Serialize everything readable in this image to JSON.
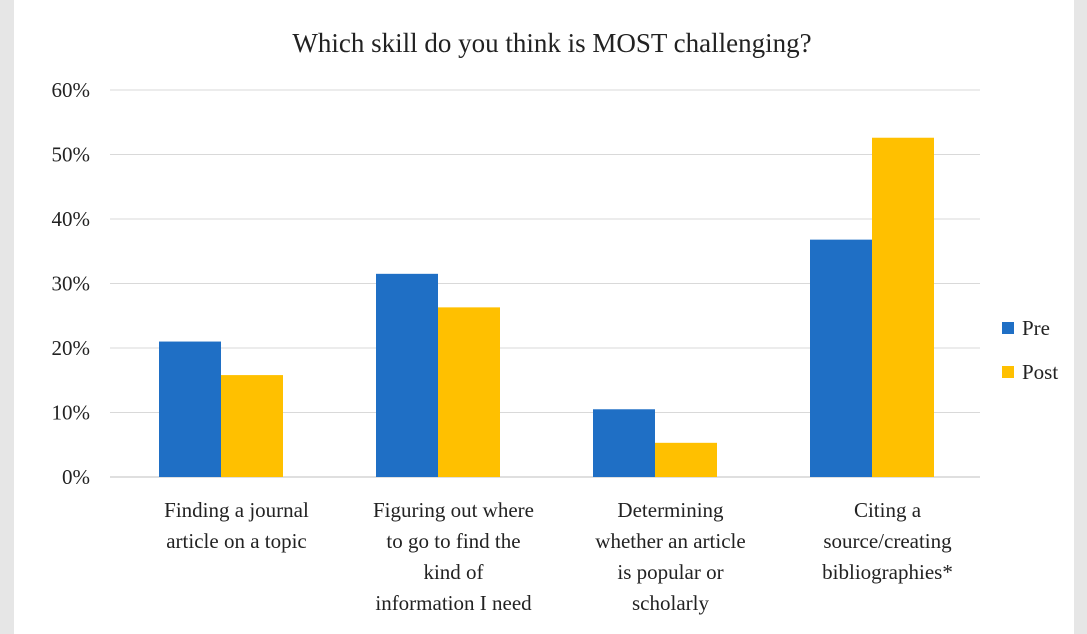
{
  "chart_data": {
    "type": "bar",
    "title": "Which skill do you think is MOST challenging?",
    "xlabel": "",
    "ylabel": "",
    "ylim": [
      0,
      60
    ],
    "yticks": [
      "0%",
      "10%",
      "20%",
      "30%",
      "40%",
      "50%",
      "60%"
    ],
    "y_unit": "%",
    "grid": true,
    "legend_position": "right",
    "categories": [
      [
        "Finding a journal",
        "article on a topic"
      ],
      [
        "Figuring out where",
        "to go to find the",
        "kind of",
        "information I need"
      ],
      [
        "Determining",
        "whether an article",
        "is popular or",
        "scholarly"
      ],
      [
        "Citing a",
        "source/creating",
        "bibliographies*"
      ]
    ],
    "series": [
      {
        "name": "Pre",
        "color": "#1f6fc5",
        "values": [
          21,
          31.5,
          10.5,
          36.8
        ]
      },
      {
        "name": "Post",
        "color": "#ffc000",
        "values": [
          15.8,
          26.3,
          5.3,
          52.6
        ]
      }
    ]
  }
}
